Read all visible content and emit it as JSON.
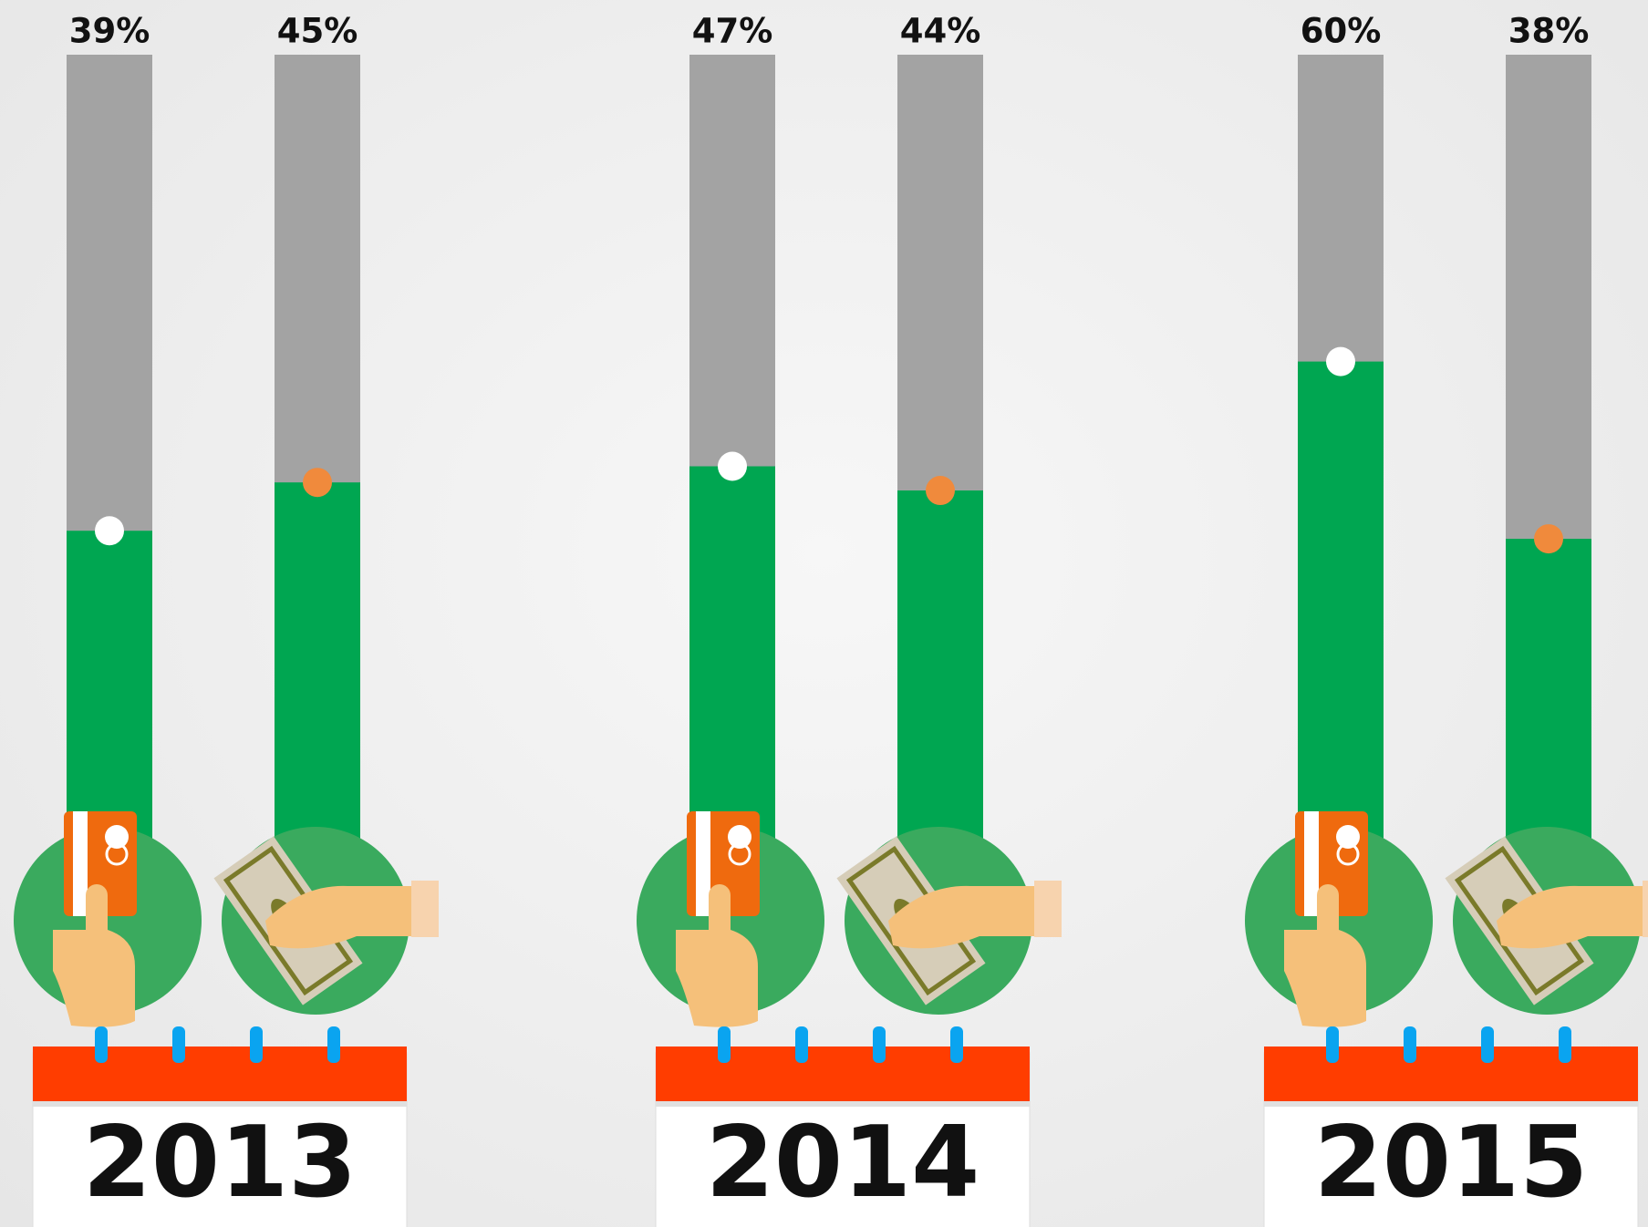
{
  "chart_data": {
    "type": "bar",
    "categories": [
      "2013",
      "2014",
      "2015"
    ],
    "series": [
      {
        "color": "#00a651",
        "marker_color": "#ffffff",
        "values": [
          39,
          47,
          60
        ],
        "value_labels": [
          "39%",
          "47%",
          "60%"
        ]
      },
      {
        "color": "#00a651",
        "marker_color": "#f08a3c",
        "values": [
          45,
          44,
          38
        ],
        "value_labels": [
          "45%",
          "44%",
          "38%"
        ]
      }
    ],
    "ylim": [
      0,
      100
    ]
  }
}
